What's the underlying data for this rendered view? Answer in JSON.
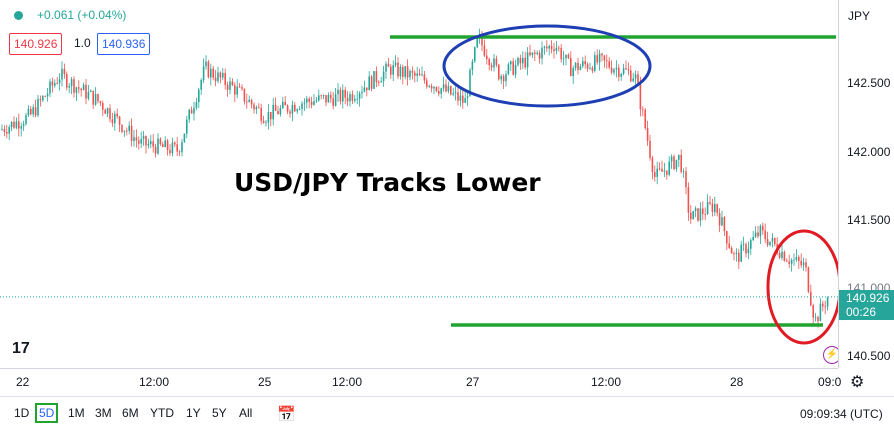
{
  "symbol_currency": "JPY",
  "change": "+0.061 (+0.04%)",
  "bid": "140.926",
  "spread": "1.0",
  "ask": "140.936",
  "headline": "USD/JPY Tracks Lower",
  "price_axis": {
    "ticks": [
      "142.500",
      "142.000",
      "141.500",
      "141.000",
      "140.500"
    ],
    "current_price": "140.926",
    "countdown": "00:26"
  },
  "time_axis": {
    "ticks": [
      "22",
      "12:00",
      "25",
      "12:00",
      "27",
      "12:00",
      "28",
      "09:0"
    ]
  },
  "ranges": [
    "1D",
    "5D",
    "1M",
    "3M",
    "6M",
    "YTD",
    "1Y",
    "5Y",
    "All"
  ],
  "active_range": "5D",
  "clock": "09:09:34 (UTC)",
  "logo": "17",
  "colors": {
    "up": "#26a69a",
    "down": "#ef5350",
    "support": "#21a330",
    "ellipse_top": "#1e3fb3",
    "ellipse_bottom": "#e01b24"
  },
  "chart_data": {
    "type": "candlestick",
    "y_range": [
      140.45,
      143.0
    ],
    "x_labels": [
      "22",
      "12:00",
      "25",
      "12:00",
      "27",
      "12:00",
      "28",
      "09:0"
    ],
    "current_price": 140.926,
    "key_points": [
      {
        "label": "22",
        "price": 142.3
      },
      {
        "label": "12:00",
        "price": 142.2
      },
      {
        "label": "25",
        "price": 142.2
      },
      {
        "label": "12:00",
        "price": 142.4
      },
      {
        "label": "27",
        "price": 142.8
      },
      {
        "label": "12:00",
        "price": 142.65
      },
      {
        "label": "28",
        "price": 141.55
      },
      {
        "label": "09:0",
        "price": 140.93
      }
    ],
    "resistance": 142.83,
    "support": 140.72
  }
}
